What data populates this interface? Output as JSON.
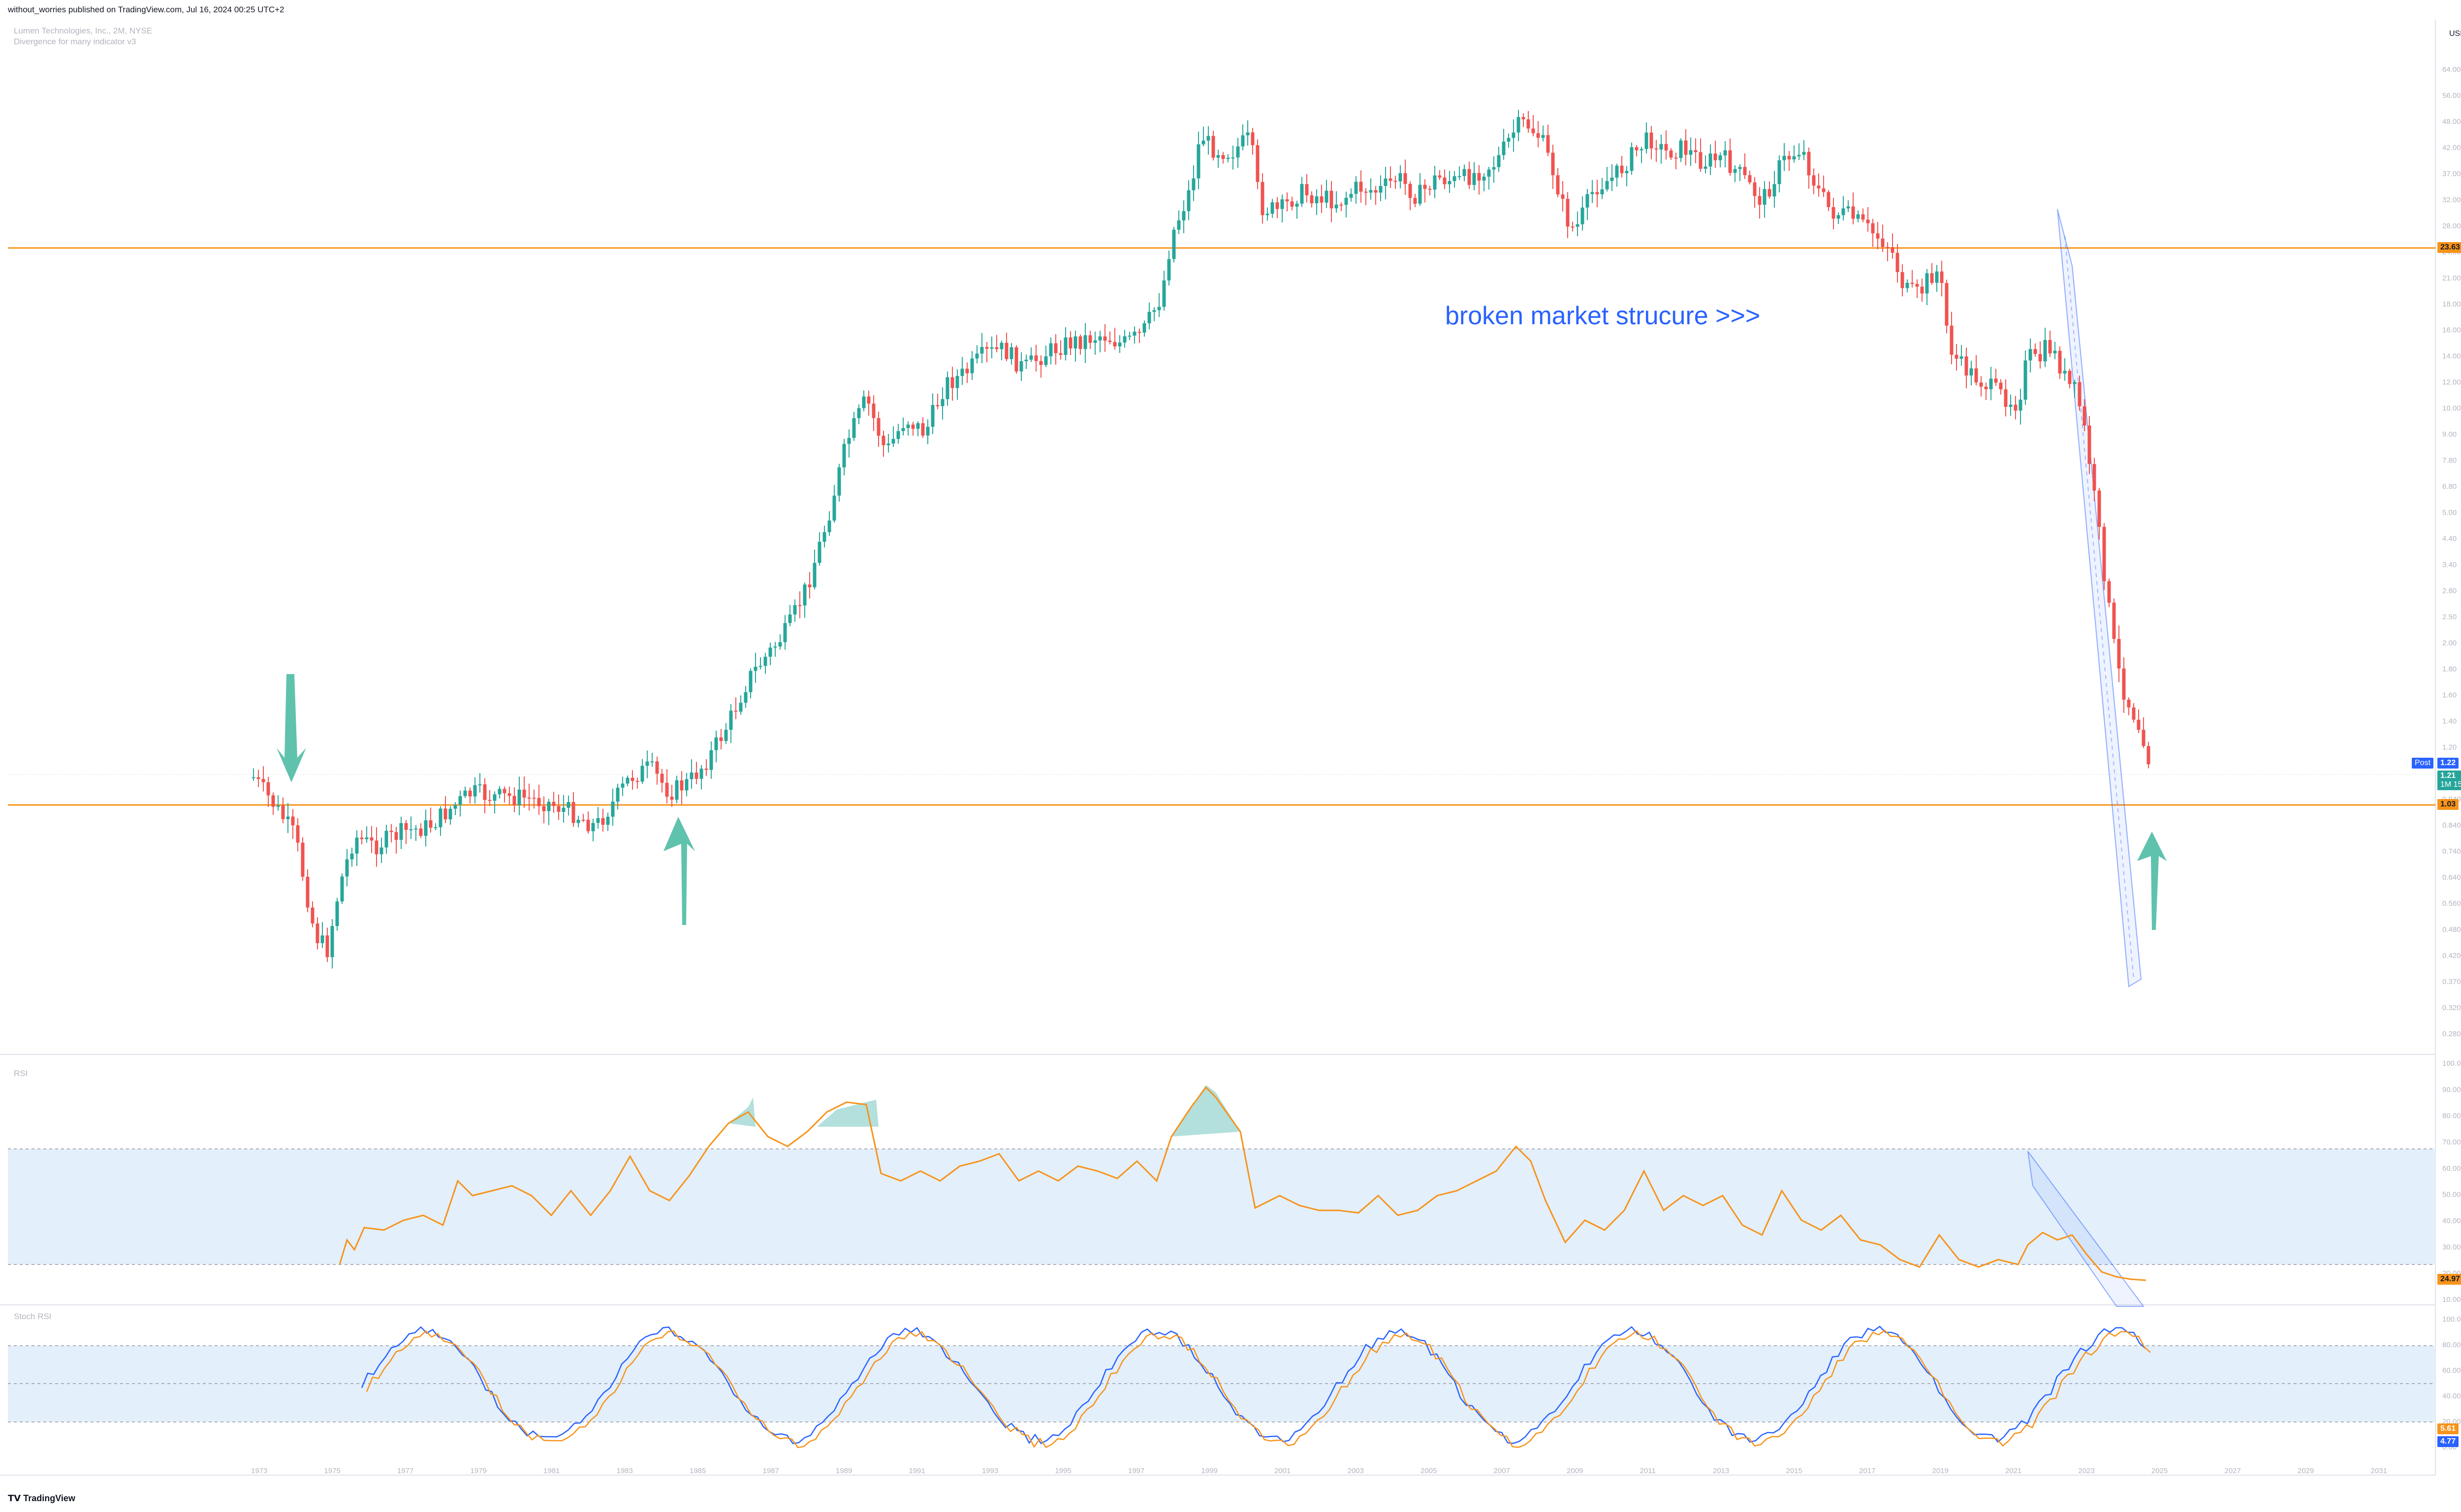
{
  "header": {
    "published_line": "without_worries published on TradingView.com, Jul 16, 2024 00:25 UTC+2"
  },
  "legend": {
    "symbol_line": "Lumen Technologies, Inc., 2M, NYSE",
    "indicator_line": "Divergence for many indicator v3"
  },
  "annotation": {
    "text": "broken market strucure >>>"
  },
  "price_axis": {
    "currency": "USD",
    "ticks": [
      "64.00",
      "56.00",
      "48.00",
      "42.00",
      "37.00",
      "32.00",
      "28.00",
      "24.00",
      "21.00",
      "18.00",
      "16.00",
      "14.00",
      "12.00",
      "10.00",
      "9.00",
      "7.80",
      "6.80",
      "5.00",
      "4.40",
      "3.40",
      "2.80",
      "2.50",
      "2.00",
      "1.80",
      "1.60",
      "1.40",
      "1.20",
      "1.06",
      "0.9400",
      "0.8400",
      "0.7400",
      "0.6400",
      "0.5600",
      "0.4800",
      "0.4200",
      "0.3700",
      "0.3200",
      "0.2800"
    ]
  },
  "rsi_axis": {
    "ticks": [
      "100.00",
      "90.00",
      "80.00",
      "70.00",
      "60.00",
      "50.00",
      "40.00",
      "30.00",
      "20.00",
      "10.00"
    ]
  },
  "stoch_axis": {
    "ticks": [
      "100.00",
      "80.00",
      "60.00",
      "40.00",
      "20.00",
      "0.00"
    ]
  },
  "time_axis": {
    "labels": [
      "1973",
      "1975",
      "1977",
      "1979",
      "1981",
      "1983",
      "1985",
      "1987",
      "1989",
      "1991",
      "1993",
      "1995",
      "1997",
      "1999",
      "2001",
      "2003",
      "2005",
      "2007",
      "2009",
      "2011",
      "2013",
      "2015",
      "2017",
      "2019",
      "2021",
      "2023",
      "2025",
      "2027",
      "2029",
      "2031"
    ]
  },
  "levels": [
    {
      "label": "23.63",
      "color": "#f7931a"
    },
    {
      "label": "1.03",
      "color": "#f7931a"
    }
  ],
  "price_tags": {
    "post": {
      "prefix": "Post",
      "value": "1.22",
      "color": "#2962ff"
    },
    "last": {
      "value": "1.21",
      "countdown": "1M 15d",
      "color": "#26a69a"
    }
  },
  "panes": {
    "rsi": {
      "title": "RSI",
      "value": "24.97",
      "color": "#f7931a"
    },
    "stoch": {
      "title": "Stoch RSI",
      "k": "4.77",
      "d": "5.61",
      "k_color": "#2962ff",
      "d_color": "#f7931a"
    }
  },
  "colors": {
    "up": "#26a69a",
    "down": "#ef5350",
    "level": "#f7931a",
    "arrow": "#5fc2ad",
    "channel": "#2962ff"
  },
  "footer": {
    "logo": "TradingView"
  }
}
